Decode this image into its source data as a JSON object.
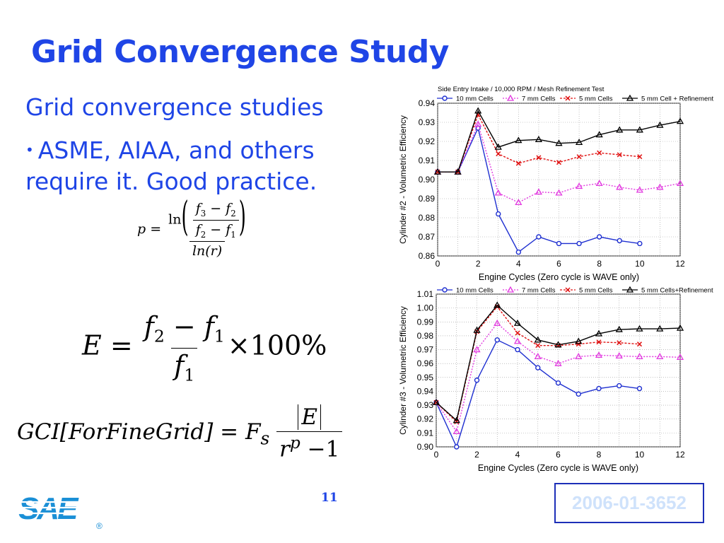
{
  "slide": {
    "title": "Grid Convergence Study",
    "subtitle": "Grid convergence studies",
    "bullet_line1": "ASME, AIAA, and others",
    "bullet_line2": "require it. Good practice.",
    "page_number": "11",
    "paper_id": "2006-01-3652",
    "logo_text": "SAE",
    "logo_mark": "®",
    "accent_color": "#1f45e6"
  },
  "formulas": {
    "p": {
      "lhs": "p =",
      "ln": "ln",
      "f3": "f",
      "s3": "3",
      "f2": "f",
      "s2": "2",
      "f2b": "f",
      "s2b": "2",
      "f1": "f",
      "s1": "1",
      "minus": " − ",
      "den": "ln(r)"
    },
    "e": {
      "lhs": "E =",
      "num_a": "f",
      "num_a_sub": "2",
      "minus": " − ",
      "num_b": "f",
      "num_b_sub": "1",
      "den": "f",
      "den_sub": "1",
      "times": "×100%"
    },
    "gci": {
      "lhs": "GCI[ForFineGrid] = F",
      "fs_sub": "s",
      "num": "E",
      "den_r": "r",
      "den_p": "p",
      "den_tail": " −1"
    }
  },
  "chart_data": [
    {
      "type": "line",
      "title": "Side Entry Intake / 10,000 RPM / Mesh Refinement Test",
      "xlabel": "Engine Cycles (Zero cycle is WAVE only)",
      "ylabel": "Cylinder #2 - Volumetric Efficiency",
      "xlim": [
        0,
        12
      ],
      "ylim": [
        0.86,
        0.94
      ],
      "xticks": [
        0,
        2,
        4,
        6,
        8,
        10,
        12
      ],
      "yticks": [
        0.86,
        0.87,
        0.88,
        0.89,
        0.9,
        0.91,
        0.92,
        0.93,
        0.94
      ],
      "ytick_labels": [
        "0.86",
        "0.87",
        "0.88",
        "0.89",
        "0.90",
        "0.91",
        "0.92",
        "0.93",
        "0.94"
      ],
      "grid": true,
      "legend_position": "top",
      "series": [
        {
          "name": "10 mm Cells",
          "color": "#1e2fd0",
          "marker": "circle",
          "dash": "",
          "x": [
            0,
            1,
            2,
            3,
            4,
            5,
            6,
            7,
            8,
            9,
            10
          ],
          "values": [
            0.904,
            0.904,
            0.927,
            0.882,
            0.862,
            0.87,
            0.8665,
            0.8665,
            0.87,
            0.868,
            0.8665
          ]
        },
        {
          "name": "7 mm Cells",
          "color": "#e23be0",
          "marker": "triangle",
          "dash": "2,2",
          "x": [
            0,
            1,
            2,
            3,
            4,
            5,
            6,
            7,
            8,
            9,
            10,
            11,
            12
          ],
          "values": [
            0.904,
            0.904,
            0.929,
            0.893,
            0.888,
            0.8935,
            0.893,
            0.8965,
            0.898,
            0.896,
            0.8945,
            0.896,
            0.898
          ]
        },
        {
          "name": "5 mm Cells",
          "color": "#e01010",
          "marker": "cross",
          "dash": "3,2",
          "x": [
            0,
            1,
            2,
            3,
            4,
            5,
            6,
            7,
            8,
            9,
            10
          ],
          "values": [
            0.904,
            0.904,
            0.934,
            0.9135,
            0.9085,
            0.9115,
            0.909,
            0.912,
            0.914,
            0.913,
            0.912
          ]
        },
        {
          "name": "5 mm Cell + Refinement",
          "color": "#000000",
          "marker": "triangle",
          "dash": "",
          "x": [
            0,
            1,
            2,
            3,
            4,
            5,
            6,
            7,
            8,
            9,
            10,
            11,
            12
          ],
          "values": [
            0.904,
            0.904,
            0.936,
            0.917,
            0.9205,
            0.921,
            0.919,
            0.9195,
            0.9235,
            0.926,
            0.926,
            0.9285,
            0.9305
          ]
        }
      ]
    },
    {
      "type": "line",
      "title": "",
      "xlabel": "Engine Cycles (Zero cycle is WAVE only)",
      "ylabel": "Cylinder #3 - Volumetric Efficiency",
      "xlim": [
        0,
        12
      ],
      "ylim": [
        0.9,
        1.01
      ],
      "xticks": [
        0,
        2,
        4,
        6,
        8,
        10,
        12
      ],
      "yticks": [
        0.9,
        0.91,
        0.92,
        0.93,
        0.94,
        0.95,
        0.96,
        0.97,
        0.98,
        0.99,
        1.0,
        1.01
      ],
      "ytick_labels": [
        "0.90",
        "0.91",
        "0.92",
        "0.93",
        "0.94",
        "0.95",
        "0.96",
        "0.97",
        "0.98",
        "0.99",
        "1.00",
        "1.01"
      ],
      "grid": true,
      "legend_position": "top",
      "series": [
        {
          "name": "10 mm Cells",
          "color": "#1e2fd0",
          "marker": "circle",
          "dash": "",
          "x": [
            0,
            1,
            2,
            3,
            4,
            5,
            6,
            7,
            8,
            9,
            10
          ],
          "values": [
            0.932,
            0.9,
            0.948,
            0.977,
            0.97,
            0.957,
            0.946,
            0.938,
            0.942,
            0.944,
            0.942
          ]
        },
        {
          "name": "7 mm Cells",
          "color": "#e23be0",
          "marker": "triangle",
          "dash": "2,2",
          "x": [
            0,
            1,
            2,
            3,
            4,
            5,
            6,
            7,
            8,
            9,
            10,
            11,
            12
          ],
          "values": [
            0.932,
            0.911,
            0.97,
            0.989,
            0.976,
            0.965,
            0.96,
            0.965,
            0.966,
            0.9655,
            0.965,
            0.965,
            0.9645
          ]
        },
        {
          "name": "5 mm Cells",
          "color": "#e01010",
          "marker": "cross",
          "dash": "3,2",
          "x": [
            0,
            1,
            2,
            3,
            4,
            5,
            6,
            7,
            8,
            9,
            10
          ],
          "values": [
            0.932,
            0.918,
            0.983,
            1.001,
            0.982,
            0.973,
            0.973,
            0.974,
            0.9755,
            0.975,
            0.974
          ]
        },
        {
          "name": "5 mm Cells+Refinement",
          "color": "#000000",
          "marker": "triangle",
          "dash": "",
          "x": [
            0,
            1,
            2,
            3,
            4,
            5,
            6,
            7,
            8,
            9,
            10,
            11,
            12
          ],
          "values": [
            0.932,
            0.919,
            0.984,
            1.002,
            0.989,
            0.977,
            0.9735,
            0.976,
            0.9815,
            0.9845,
            0.985,
            0.985,
            0.9855
          ]
        }
      ]
    }
  ]
}
